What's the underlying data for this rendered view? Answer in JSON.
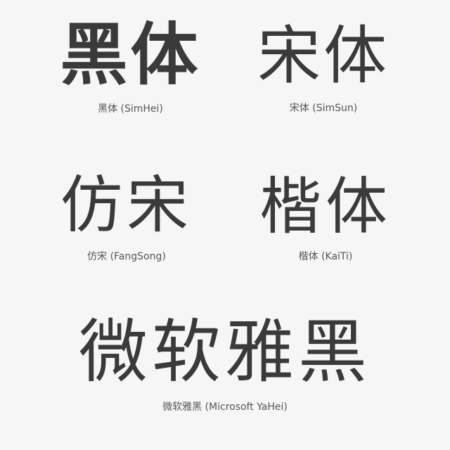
{
  "samples": {
    "simhei": {
      "glyphs": "黑体",
      "caption": "黑体 (SimHei)"
    },
    "simsun": {
      "glyphs": "宋体",
      "caption": "宋体 (SimSun)"
    },
    "fangsong": {
      "glyphs": "仿宋",
      "caption": "仿宋 (FangSong)"
    },
    "kaiti": {
      "glyphs": "楷体",
      "caption": "楷体 (KaiTi)"
    },
    "yahei": {
      "glyphs": "微软雅黑",
      "caption": "微软雅黑 (Microsoft YaHei)"
    }
  },
  "colors": {
    "background": "#f6f6f6",
    "glyph": "#3a3a3a",
    "caption": "#555555"
  }
}
